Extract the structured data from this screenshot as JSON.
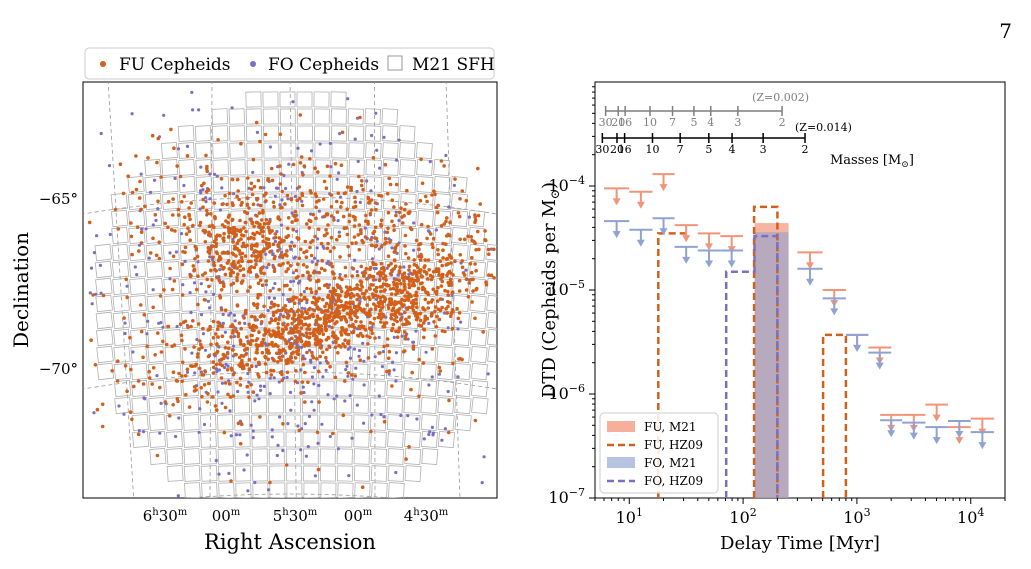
{
  "page": {
    "number": "7"
  },
  "colors": {
    "fu_dot": "#d2601a",
    "fo_dot": "#7b6fc0",
    "fu_m21": "#f2947a",
    "fo_m21": "#8fa3d1",
    "fu_hz09": "#d2601a",
    "fo_hz09": "#7b6fc0",
    "grid_box": "#b0b0b0",
    "mass_grey": "#7f7f7f"
  },
  "chart_data": [
    {
      "type": "scatter",
      "panel": "left",
      "legend": {
        "placement": "top",
        "entries": [
          "FU Cepheids",
          "FO Cepheids",
          "M21 SFH"
        ]
      },
      "xlabel": "Right Ascension",
      "ylabel": "Declination",
      "x_ticks": [
        {
          "main": "6",
          "sup1": "h",
          "mid": "30",
          "sup2": "m"
        },
        {
          "main": "00",
          "sup1": "m",
          "mid": "",
          "sup2": ""
        },
        {
          "main": "5",
          "sup1": "h",
          "mid": "30",
          "sup2": "m"
        },
        {
          "main": "00",
          "sup1": "m",
          "mid": "",
          "sup2": ""
        },
        {
          "main": "4",
          "sup1": "h",
          "mid": "30",
          "sup2": "m"
        }
      ],
      "y_ticks": [
        "−65°",
        "−70°"
      ],
      "projection": "gnomonic",
      "grid": true
    },
    {
      "type": "line",
      "panel": "right",
      "xlabel": "Delay Time [Myr]",
      "ylabel": "DTD (Cepheids per M",
      "ylabel_sub": "⊙",
      "ylabel_end": ")",
      "xscale": "log",
      "yscale": "log",
      "xlim": [
        5,
        20000
      ],
      "ylim": [
        1e-07,
        0.001
      ],
      "x_ticks": [
        {
          "base": "10",
          "exp": "1",
          "value": 10
        },
        {
          "base": "10",
          "exp": "2",
          "value": 100
        },
        {
          "base": "10",
          "exp": "3",
          "value": 1000
        },
        {
          "base": "10",
          "exp": "4",
          "value": 10000
        }
      ],
      "y_ticks": [
        {
          "base": "10",
          "exp": "−7",
          "value": 1e-07
        },
        {
          "base": "10",
          "exp": "−6",
          "value": 1e-06
        },
        {
          "base": "10",
          "exp": "−5",
          "value": 1e-05
        },
        {
          "base": "10",
          "exp": "−4",
          "value": 0.0001
        }
      ],
      "legend": {
        "placement": "lower-left",
        "entries": [
          "FU, M21",
          "FU, HZ09",
          "FO, M21",
          "FO, HZ09"
        ]
      },
      "mass_scales": {
        "z002": {
          "label": "(Z=0.002)",
          "masses": [
            "30",
            "20",
            "16",
            "10",
            "7",
            "5",
            "4",
            "3",
            "2"
          ],
          "ages_myr": [
            6.2,
            8.0,
            9.2,
            15.2,
            24,
            37,
            52,
            90,
            220
          ]
        },
        "z014": {
          "label": "(Z=0.014)",
          "masses": [
            "30",
            "20",
            "16",
            "10",
            "7",
            "5",
            "4",
            "3",
            "2"
          ],
          "ages_myr": [
            5.8,
            7.8,
            9.1,
            16,
            28,
            50,
            80,
            150,
            350
          ]
        },
        "axis_label": "Masses [M",
        "axis_label_sub": "⊙",
        "axis_label_end": "]"
      },
      "series": [
        {
          "name": "FU, M21",
          "kind": "upper_limit",
          "bins": [
            [
              6,
              10
            ],
            [
              10,
              16
            ],
            [
              16,
              25
            ],
            [
              25,
              40
            ],
            [
              40,
              63
            ],
            [
              63,
              100
            ],
            [
              300,
              500
            ],
            [
              500,
              800
            ],
            [
              800,
              1260
            ],
            [
              1260,
              2000
            ],
            [
              1600,
              2500
            ],
            [
              2500,
              4000
            ],
            [
              4000,
              6300
            ],
            [
              6300,
              10000
            ],
            [
              10000,
              16000
            ]
          ],
          "values": [
            9.5e-05,
            8.8e-05,
            0.00013,
            4.2e-05,
            3.5e-05,
            3.3e-05,
            2.3e-05,
            1e-05,
            3.7e-06,
            2.8e-06,
            6.3e-07,
            6.3e-07,
            7.9e-07,
            4.8e-07,
            5.8e-07
          ]
        },
        {
          "name": "FU, M21 measured",
          "kind": "bar",
          "bins": [
            [
              126,
              251
            ]
          ],
          "values": [
            4.4e-05
          ]
        },
        {
          "name": "FO, M21",
          "kind": "upper_limit",
          "bins": [
            [
              6,
              10
            ],
            [
              10,
              16
            ],
            [
              16,
              25
            ],
            [
              25,
              40
            ],
            [
              40,
              63
            ],
            [
              63,
              100
            ],
            [
              300,
              500
            ],
            [
              500,
              800
            ],
            [
              800,
              1260
            ],
            [
              1260,
              2000
            ],
            [
              1600,
              2500
            ],
            [
              2500,
              4000
            ],
            [
              4000,
              6300
            ],
            [
              6300,
              10000
            ],
            [
              10000,
              16000
            ]
          ],
          "values": [
            4.6e-05,
            3.8e-05,
            4.9e-05,
            2.6e-05,
            2.4e-05,
            2.4e-05,
            1.6e-05,
            8.3e-06,
            3.7e-06,
            2.5e-06,
            5.6e-07,
            5.3e-07,
            4.8e-07,
            5.5e-07,
            4.3e-07
          ]
        },
        {
          "name": "FO, M21 measured",
          "kind": "bar",
          "bins": [
            [
              126,
              251
            ]
          ],
          "values": [
            3.6e-05
          ]
        },
        {
          "name": "FU, HZ09",
          "kind": "step",
          "segments": [
            [
              [
                18,
                1e-07
              ],
              [
                18,
                3.5e-05
              ],
              [
                32,
                3.5e-05
              ]
            ],
            [
              [
                125,
                1e-07
              ],
              [
                125,
                6.3e-05
              ],
              [
                200,
                6.3e-05
              ],
              [
                200,
                1e-07
              ]
            ],
            [
              [
                505,
                1e-07
              ],
              [
                505,
                3.7e-06
              ],
              [
                800,
                3.7e-06
              ],
              [
                800,
                1e-07
              ]
            ]
          ]
        },
        {
          "name": "FO, HZ09",
          "kind": "step",
          "segments": [
            [
              [
                71,
                1e-07
              ],
              [
                71,
                1.5e-05
              ],
              [
                126,
                1.5e-05
              ],
              [
                126,
                3.3e-05
              ],
              [
                200,
                3.3e-05
              ],
              [
                200,
                1e-07
              ]
            ]
          ]
        }
      ]
    }
  ]
}
